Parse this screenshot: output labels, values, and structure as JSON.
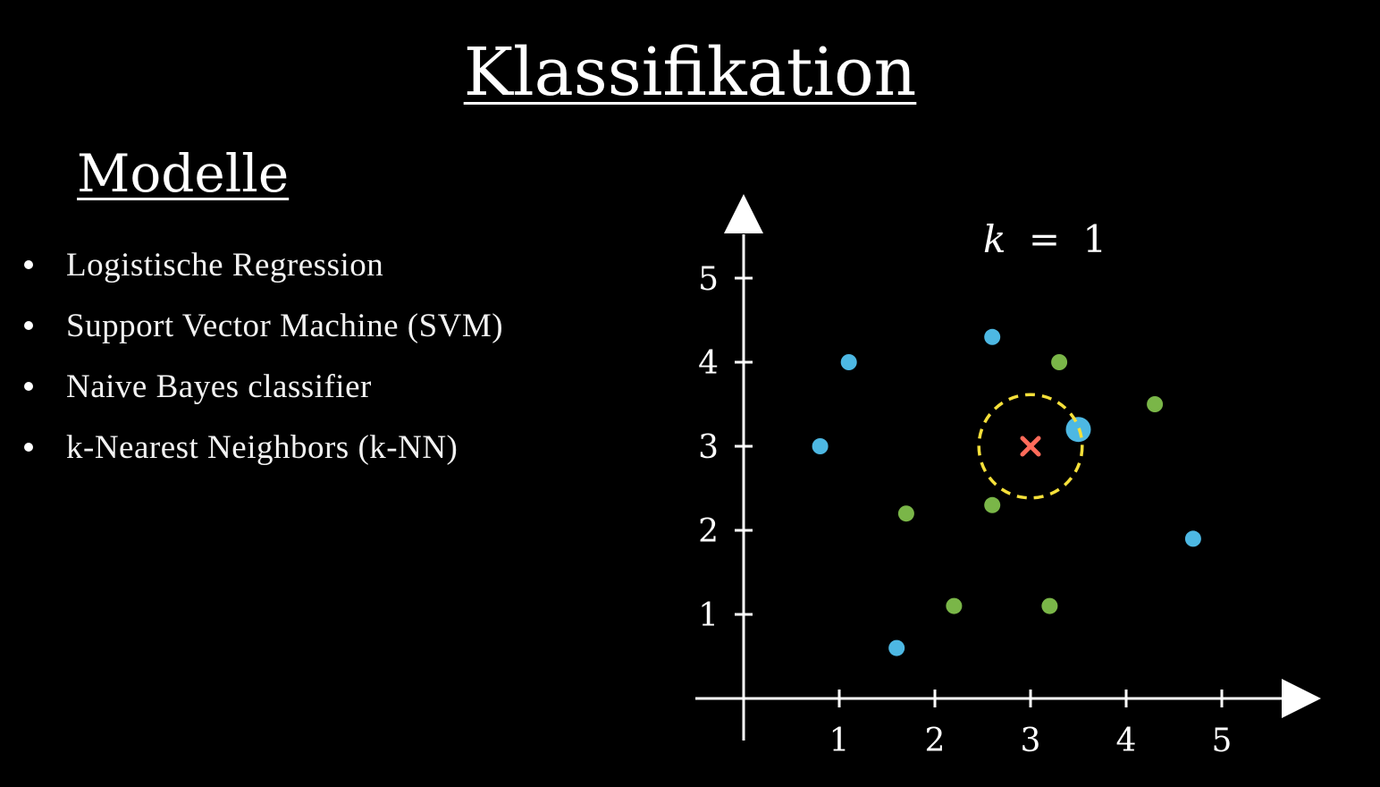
{
  "title": "Klassifikation",
  "models": {
    "heading": "Modelle",
    "items": [
      "Logistische Regression",
      "Support Vector Machine (SVM)",
      "Naive Bayes classifier",
      "k-Nearest Neighbors (k-NN)"
    ]
  },
  "chart_data": {
    "type": "scatter",
    "title": "",
    "annotation": {
      "k_var": "k",
      "eq": "=",
      "k_value": "1"
    },
    "xlabel": "",
    "ylabel": "",
    "xlim": [
      -0.5,
      5.5
    ],
    "ylim": [
      -0.5,
      5.5
    ],
    "x_ticks": [
      1,
      2,
      3,
      4,
      5
    ],
    "y_ticks": [
      1,
      2,
      3,
      4,
      5
    ],
    "x_tick_labels": [
      "1",
      "2",
      "3",
      "4",
      "5"
    ],
    "y_tick_labels": [
      "1",
      "2",
      "3",
      "4",
      "5"
    ],
    "grid": false,
    "series": [
      {
        "color": "#4db8e3",
        "points": [
          [
            1.1,
            4.0
          ],
          [
            0.8,
            3.0
          ],
          [
            2.6,
            4.3
          ],
          [
            4.7,
            1.9
          ],
          [
            1.6,
            0.6
          ]
        ]
      },
      {
        "color": "#7ab648",
        "points": [
          [
            3.3,
            4.0
          ],
          [
            4.3,
            3.5
          ],
          [
            1.7,
            2.2
          ],
          [
            2.6,
            2.3
          ],
          [
            2.2,
            1.1
          ],
          [
            3.2,
            1.1
          ]
        ]
      }
    ],
    "query_point": {
      "x": 3.0,
      "y": 3.0,
      "color": "#ff6b5a"
    },
    "nearest_neighbor": {
      "x": 3.5,
      "y": 3.2,
      "color": "#4db8e3"
    },
    "neighborhood_radius": 0.54,
    "neighborhood_color": "#f5e03a"
  }
}
